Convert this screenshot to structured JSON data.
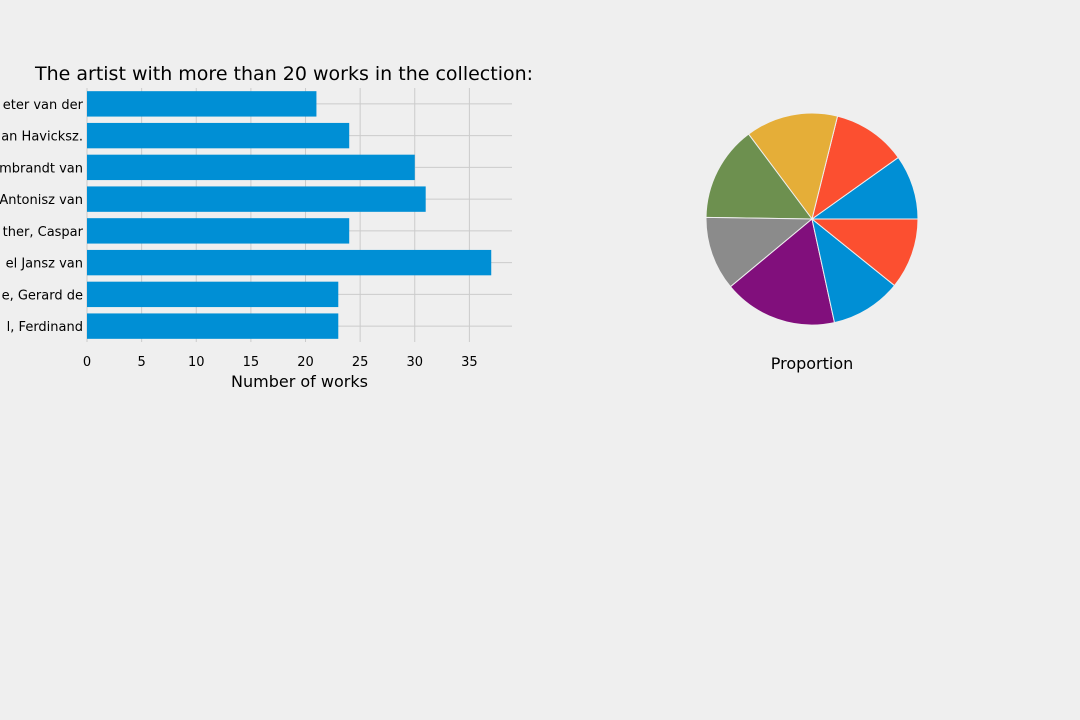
{
  "chart_data": [
    {
      "type": "bar",
      "orientation": "horizontal",
      "title": "The artist with more than 20 works in the collection:",
      "xlabel": "Number of works",
      "ylabel": "",
      "categories": [
        "eter van der",
        "an Havicksz.",
        "mbrandt van",
        "Antonisz van",
        "ther, Caspar",
        "el Jansz van",
        "e, Gerard de",
        "l, Ferdinand"
      ],
      "values": [
        21,
        24,
        30,
        31,
        24,
        37,
        23,
        23
      ],
      "xlim": [
        0,
        38.9
      ],
      "xticks": [
        "0",
        "5",
        "10",
        "15",
        "20",
        "25",
        "30",
        "35"
      ],
      "grid": true,
      "bar_color": "#008fd5"
    },
    {
      "type": "pie",
      "title": "",
      "xlabel": "Proportion",
      "values": [
        21,
        24,
        30,
        31,
        24,
        37,
        23,
        23
      ],
      "colors": [
        "#008fd5",
        "#fc4f30",
        "#e5ae38",
        "#6d904f",
        "#8b8b8b",
        "#810f7c",
        "#008fd5",
        "#fc4f30"
      ],
      "labels_shown": false
    }
  ]
}
